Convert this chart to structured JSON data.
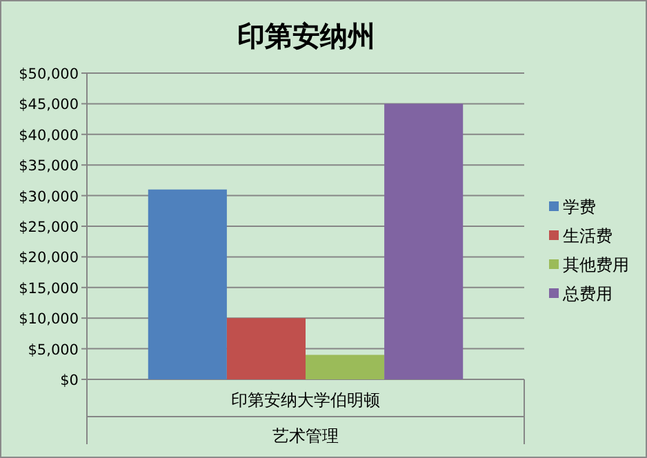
{
  "chart_data": {
    "type": "bar",
    "title": "印第安纳州",
    "categories": [
      "印第安纳大学伯明顿"
    ],
    "xlabel": "艺术管理",
    "series": [
      {
        "name": "学费",
        "color": "#4f81bd",
        "values": [
          31000
        ]
      },
      {
        "name": "生活费",
        "color": "#c0504d",
        "values": [
          10000
        ]
      },
      {
        "name": "其他费用",
        "color": "#9bbb59",
        "values": [
          4000
        ]
      },
      {
        "name": "总费用",
        "color": "#8064a2",
        "values": [
          45000
        ]
      }
    ],
    "ylim": [
      0,
      50000
    ],
    "yticks": [
      {
        "value": 0,
        "label": "$0"
      },
      {
        "value": 5000,
        "label": "$5,000"
      },
      {
        "value": 10000,
        "label": "$10,000"
      },
      {
        "value": 15000,
        "label": "$15,000"
      },
      {
        "value": 20000,
        "label": "$20,000"
      },
      {
        "value": 25000,
        "label": "$25,000"
      },
      {
        "value": 30000,
        "label": "$30,000"
      },
      {
        "value": 35000,
        "label": "$35,000"
      },
      {
        "value": 40000,
        "label": "$40,000"
      },
      {
        "value": 45000,
        "label": "$45,000"
      },
      {
        "value": 50000,
        "label": "$50,000"
      }
    ],
    "grid": "y",
    "legend": "right"
  }
}
